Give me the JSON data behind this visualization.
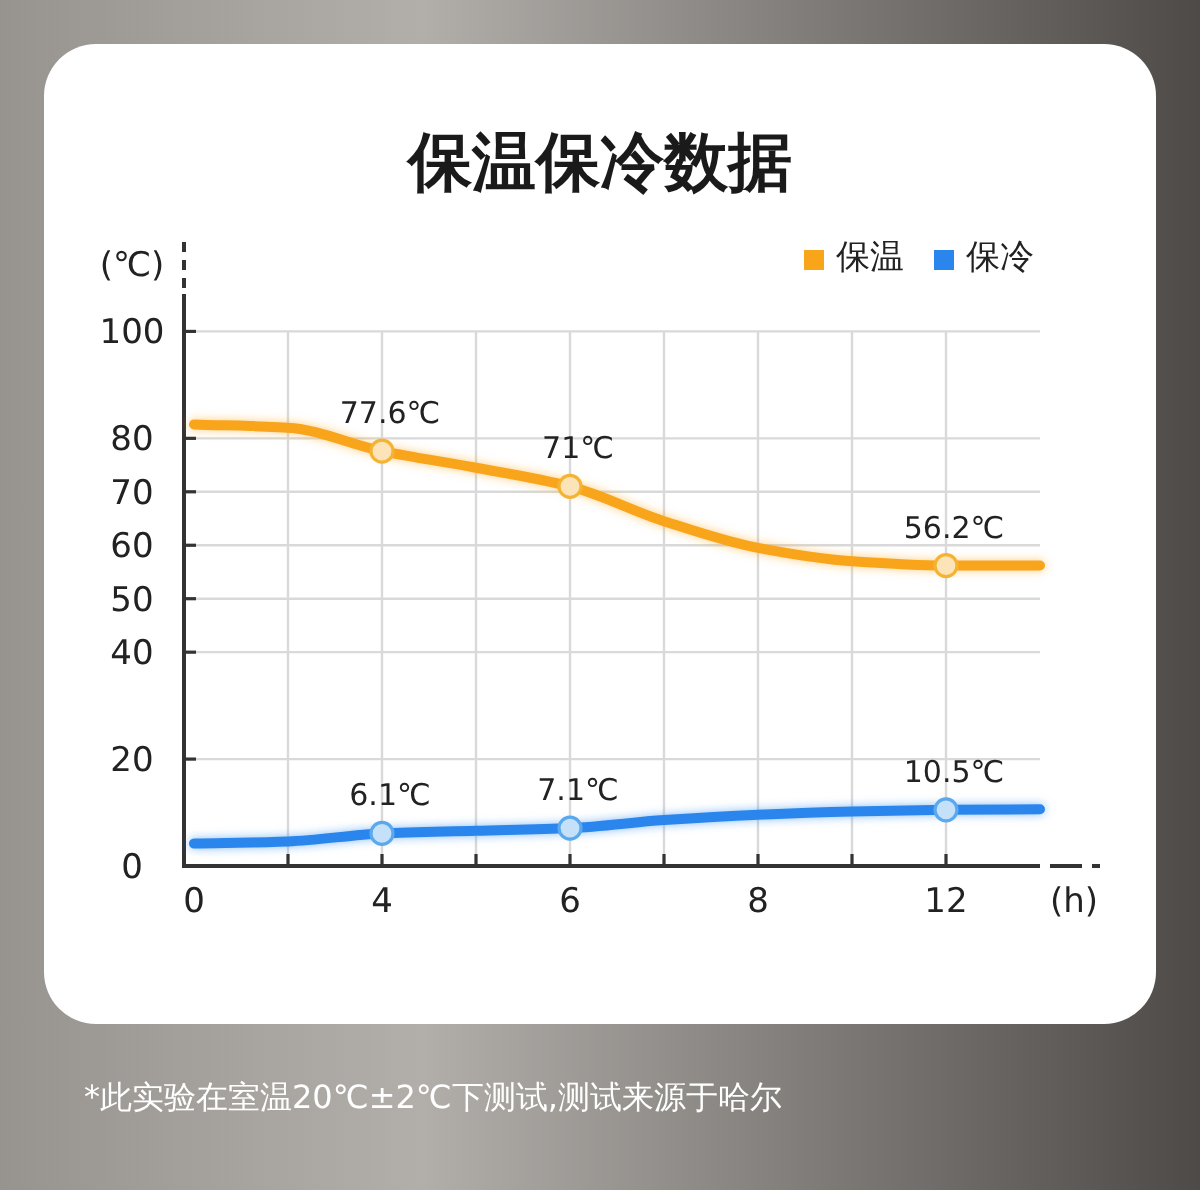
{
  "chart_data": {
    "type": "line",
    "title": "保温保冷数据",
    "xlabel": "(h)",
    "ylabel": "(℃)",
    "categories": [
      "0",
      null,
      "4",
      null,
      "6",
      null,
      "8",
      null,
      "12",
      null
    ],
    "ylim": [
      0,
      107
    ],
    "yticks": [
      0,
      20,
      40,
      50,
      60,
      70,
      80,
      100
    ],
    "grid": true,
    "legend": "top right",
    "series": [
      {
        "name": "保温",
        "color": "#f9a51a",
        "marker": "none",
        "values": [
          82.6,
          82,
          77.6,
          74.5,
          71,
          64.5,
          59.5,
          57,
          56.2,
          56.2
        ]
      },
      {
        "name": "保冷",
        "color": "#2a86ec",
        "marker": "none",
        "values": [
          4.2,
          4.6,
          6.1,
          6.6,
          7.1,
          8.6,
          9.6,
          10.2,
          10.5,
          10.6
        ]
      },
      {
        "type": "scatter",
        "color": "#f5b334",
        "marker": "circle",
        "values": [
          null,
          null,
          77.6,
          null,
          71,
          null,
          null,
          null,
          56.2,
          null
        ],
        "value_labels": [
          null,
          null,
          "77.6℃",
          null,
          "71℃",
          null,
          null,
          null,
          "56.2℃",
          null
        ]
      },
      {
        "type": "scatter",
        "color": "#5aa8ee",
        "marker": "circle",
        "values": [
          null,
          null,
          6.1,
          null,
          7.1,
          null,
          null,
          null,
          10.5,
          null
        ],
        "value_labels": [
          null,
          null,
          "6.1℃",
          null,
          "7.1℃",
          null,
          null,
          null,
          "10.5℃",
          null
        ]
      }
    ],
    "annotations": [
      "*此实验在室温20℃±2℃下测试,测试来源于哈尔"
    ]
  }
}
